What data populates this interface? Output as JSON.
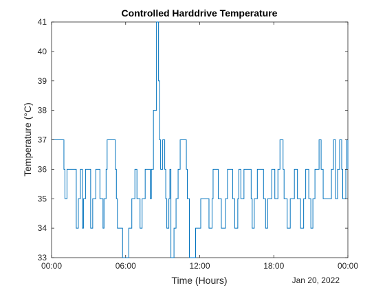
{
  "chart_data": {
    "type": "line",
    "title": "Controlled Harddrive Temperature",
    "xlabel": "Time (Hours)",
    "ylabel": "Temperature (°C)",
    "date_label": "Jan 20, 2022",
    "xlim": [
      "00:00",
      "00:00"
    ],
    "ylim": [
      33,
      41
    ],
    "x_ticks": [
      "00:00",
      "06:00",
      "12:00",
      "18:00",
      "00:00"
    ],
    "y_ticks": [
      "33",
      "34",
      "35",
      "36",
      "37",
      "38",
      "39",
      "40",
      "41"
    ],
    "grid": false,
    "line_color": "#0072BD",
    "series": [
      {
        "x": [
          "00:00",
          "00:30",
          "01:00",
          "01:05",
          "01:15",
          "01:45",
          "02:00",
          "02:10",
          "02:20",
          "02:25",
          "02:30",
          "02:35",
          "02:45",
          "03:00",
          "03:10",
          "03:20",
          "03:35",
          "03:45",
          "03:55",
          "04:10",
          "04:15",
          "04:25",
          "04:30",
          "04:45",
          "05:00",
          "05:10",
          "05:15",
          "05:20",
          "05:30",
          "05:45",
          "06:00",
          "06:15",
          "06:30",
          "06:45",
          "06:55",
          "07:10",
          "07:20",
          "07:35",
          "07:50",
          "08:00",
          "08:05",
          "08:15",
          "08:30",
          "08:40",
          "08:45",
          "08:50",
          "09:00",
          "09:10",
          "09:15",
          "09:20",
          "09:25",
          "09:30",
          "09:35",
          "09:40",
          "09:45",
          "09:55",
          "10:05",
          "10:15",
          "10:25",
          "10:40",
          "10:55",
          "11:00",
          "11:10",
          "11:20",
          "11:30",
          "11:40",
          "12:05",
          "12:15",
          "12:30",
          "12:45",
          "13:00",
          "13:05",
          "13:15",
          "13:30",
          "13:45",
          "14:05",
          "14:15",
          "14:25",
          "14:40",
          "14:50",
          "15:05",
          "15:10",
          "15:20",
          "15:35",
          "15:55",
          "16:10",
          "16:15",
          "16:25",
          "16:40",
          "16:50",
          "17:10",
          "17:20",
          "17:30",
          "17:50",
          "18:05",
          "18:20",
          "18:30",
          "18:45",
          "18:50",
          "19:05",
          "19:20",
          "19:40",
          "19:45",
          "19:55",
          "20:10",
          "20:25",
          "20:35",
          "20:45",
          "20:50",
          "21:00",
          "21:10",
          "21:20",
          "21:40",
          "21:50",
          "22:00",
          "22:20",
          "22:40",
          "22:50",
          "23:00",
          "23:10",
          "23:20",
          "23:30",
          "23:35",
          "23:50",
          "23:55",
          "24:00"
        ],
        "values": [
          37,
          37,
          36,
          35,
          36,
          36,
          34,
          35,
          36,
          36,
          34,
          35,
          36,
          36,
          34,
          35,
          36,
          36,
          35,
          34,
          35,
          36,
          37,
          37,
          37,
          36,
          35,
          34,
          34,
          33,
          33,
          34,
          35,
          36,
          35,
          34,
          35,
          36,
          36,
          35,
          36,
          38,
          41,
          39,
          37,
          36,
          37,
          36,
          35,
          34,
          34,
          35,
          36,
          33,
          33,
          34,
          35,
          36,
          37,
          37,
          36,
          35,
          33,
          33,
          33,
          34,
          35,
          35,
          35,
          34,
          35,
          36,
          36,
          35,
          34,
          35,
          36,
          36,
          35,
          34,
          35,
          36,
          35,
          36,
          36,
          35,
          34,
          35,
          36,
          36,
          35,
          34,
          35,
          36,
          35,
          36,
          37,
          36,
          35,
          34,
          35,
          36,
          36,
          35,
          34,
          35,
          36,
          36,
          35,
          34,
          35,
          36,
          37,
          36,
          35,
          35,
          36,
          37,
          35,
          36,
          37,
          36,
          35,
          36,
          37,
          36
        ]
      }
    ]
  }
}
